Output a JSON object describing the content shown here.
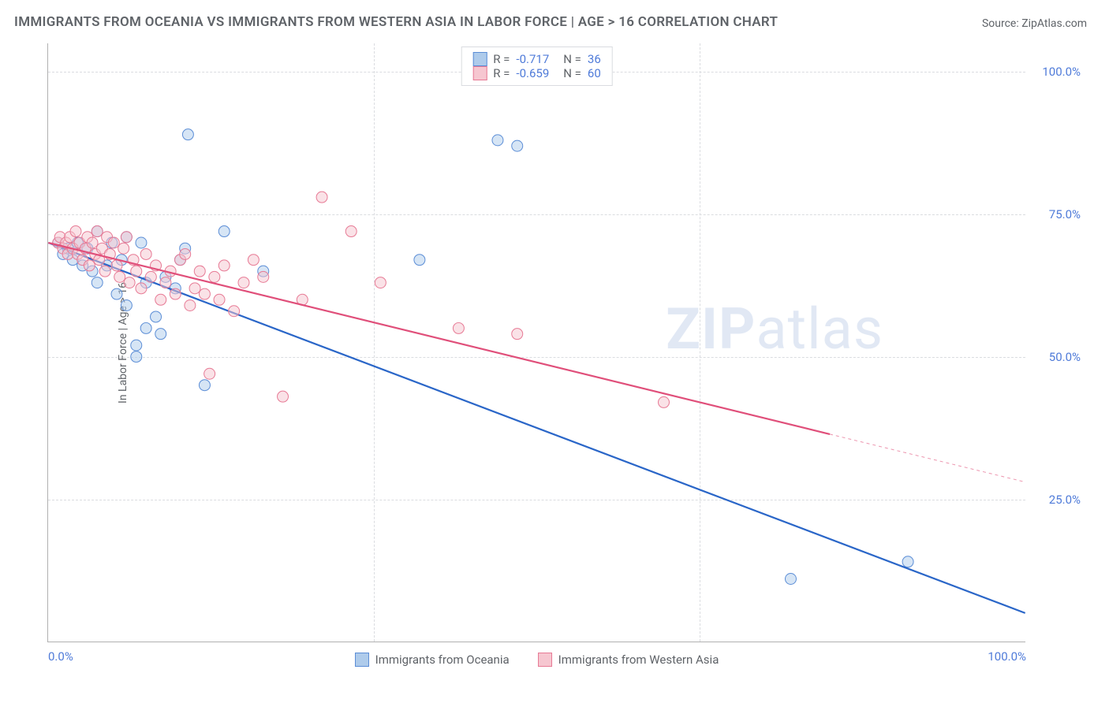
{
  "title": "IMMIGRANTS FROM OCEANIA VS IMMIGRANTS FROM WESTERN ASIA IN LABOR FORCE | AGE > 16 CORRELATION CHART",
  "source": "Source: ZipAtlas.com",
  "ylabel": "In Labor Force | Age > 16",
  "watermark_a": "ZIP",
  "watermark_b": "atlas",
  "chart": {
    "type": "scatter",
    "xlim": [
      0,
      100
    ],
    "ylim": [
      0,
      105
    ],
    "x_ticks": [
      0,
      100
    ],
    "x_tick_labels": [
      "0.0%",
      "100.0%"
    ],
    "x_tick_mids": [
      33.3,
      66.6
    ],
    "y_ticks": [
      25,
      50,
      75,
      100
    ],
    "y_tick_labels": [
      "25.0%",
      "50.0%",
      "75.0%",
      "100.0%"
    ],
    "background_color": "#ffffff",
    "grid_color": "#dadce0",
    "axis_color": "#b0b0b0",
    "tick_label_color": "#4f7bd9",
    "text_color": "#5f6368",
    "marker_radius": 7,
    "marker_opacity": 0.5,
    "line_width": 2.2,
    "series": [
      {
        "name": "Immigrants from Oceania",
        "color_fill": "#aecbeb",
        "color_stroke": "#5b8dd6",
        "line_color": "#2a66c8",
        "r_value": "-0.717",
        "n_value": "36",
        "points": [
          [
            1,
            70
          ],
          [
            1.5,
            68
          ],
          [
            2,
            69
          ],
          [
            2.5,
            67
          ],
          [
            3,
            70
          ],
          [
            3.5,
            66
          ],
          [
            4,
            69
          ],
          [
            4.5,
            65
          ],
          [
            5,
            72
          ],
          [
            5,
            63
          ],
          [
            6,
            66
          ],
          [
            6.5,
            70
          ],
          [
            7,
            61
          ],
          [
            7.5,
            67
          ],
          [
            8,
            71
          ],
          [
            8,
            59
          ],
          [
            9,
            50
          ],
          [
            9,
            52
          ],
          [
            9.5,
            70
          ],
          [
            10,
            63
          ],
          [
            10,
            55
          ],
          [
            11,
            57
          ],
          [
            11.5,
            54
          ],
          [
            12,
            64
          ],
          [
            13,
            62
          ],
          [
            13.5,
            67
          ],
          [
            14,
            69
          ],
          [
            14.3,
            89
          ],
          [
            16,
            45
          ],
          [
            18,
            72
          ],
          [
            22,
            65
          ],
          [
            38,
            67
          ],
          [
            46,
            88
          ],
          [
            48,
            87
          ],
          [
            76,
            11
          ],
          [
            88,
            14
          ]
        ],
        "regression": {
          "x1": 0,
          "y1": 70,
          "x2": 100,
          "y2": 5
        },
        "regression_dash_start": 100
      },
      {
        "name": "Immigrants from Western Asia",
        "color_fill": "#f6c6d0",
        "color_stroke": "#e77a95",
        "line_color": "#e04f7a",
        "r_value": "-0.659",
        "n_value": "60",
        "points": [
          [
            1,
            70
          ],
          [
            1.2,
            71
          ],
          [
            1.5,
            69
          ],
          [
            1.8,
            70
          ],
          [
            2,
            68
          ],
          [
            2.2,
            71
          ],
          [
            2.5,
            69
          ],
          [
            2.8,
            72
          ],
          [
            3,
            68
          ],
          [
            3.2,
            70
          ],
          [
            3.5,
            67
          ],
          [
            3.8,
            69
          ],
          [
            4,
            71
          ],
          [
            4.2,
            66
          ],
          [
            4.5,
            70
          ],
          [
            4.8,
            68
          ],
          [
            5,
            72
          ],
          [
            5.2,
            67
          ],
          [
            5.5,
            69
          ],
          [
            5.8,
            65
          ],
          [
            6,
            71
          ],
          [
            6.3,
            68
          ],
          [
            6.7,
            70
          ],
          [
            7,
            66
          ],
          [
            7.3,
            64
          ],
          [
            7.7,
            69
          ],
          [
            8,
            71
          ],
          [
            8.3,
            63
          ],
          [
            8.7,
            67
          ],
          [
            9,
            65
          ],
          [
            9.5,
            62
          ],
          [
            10,
            68
          ],
          [
            10.5,
            64
          ],
          [
            11,
            66
          ],
          [
            11.5,
            60
          ],
          [
            12,
            63
          ],
          [
            12.5,
            65
          ],
          [
            13,
            61
          ],
          [
            13.5,
            67
          ],
          [
            14,
            68
          ],
          [
            14.5,
            59
          ],
          [
            15,
            62
          ],
          [
            15.5,
            65
          ],
          [
            16,
            61
          ],
          [
            16.5,
            47
          ],
          [
            17,
            64
          ],
          [
            17.5,
            60
          ],
          [
            18,
            66
          ],
          [
            19,
            58
          ],
          [
            20,
            63
          ],
          [
            21,
            67
          ],
          [
            22,
            64
          ],
          [
            24,
            43
          ],
          [
            26,
            60
          ],
          [
            28,
            78
          ],
          [
            31,
            72
          ],
          [
            34,
            63
          ],
          [
            42,
            55
          ],
          [
            48,
            54
          ],
          [
            63,
            42
          ]
        ],
        "regression": {
          "x1": 0,
          "y1": 70,
          "x2": 100,
          "y2": 28
        },
        "regression_dash_start": 80
      }
    ]
  },
  "legend_bottom": [
    {
      "label": "Immigrants from Oceania",
      "fill": "#aecbeb",
      "stroke": "#5b8dd6"
    },
    {
      "label": "Immigrants from Western Asia",
      "fill": "#f6c6d0",
      "stroke": "#e77a95"
    }
  ]
}
